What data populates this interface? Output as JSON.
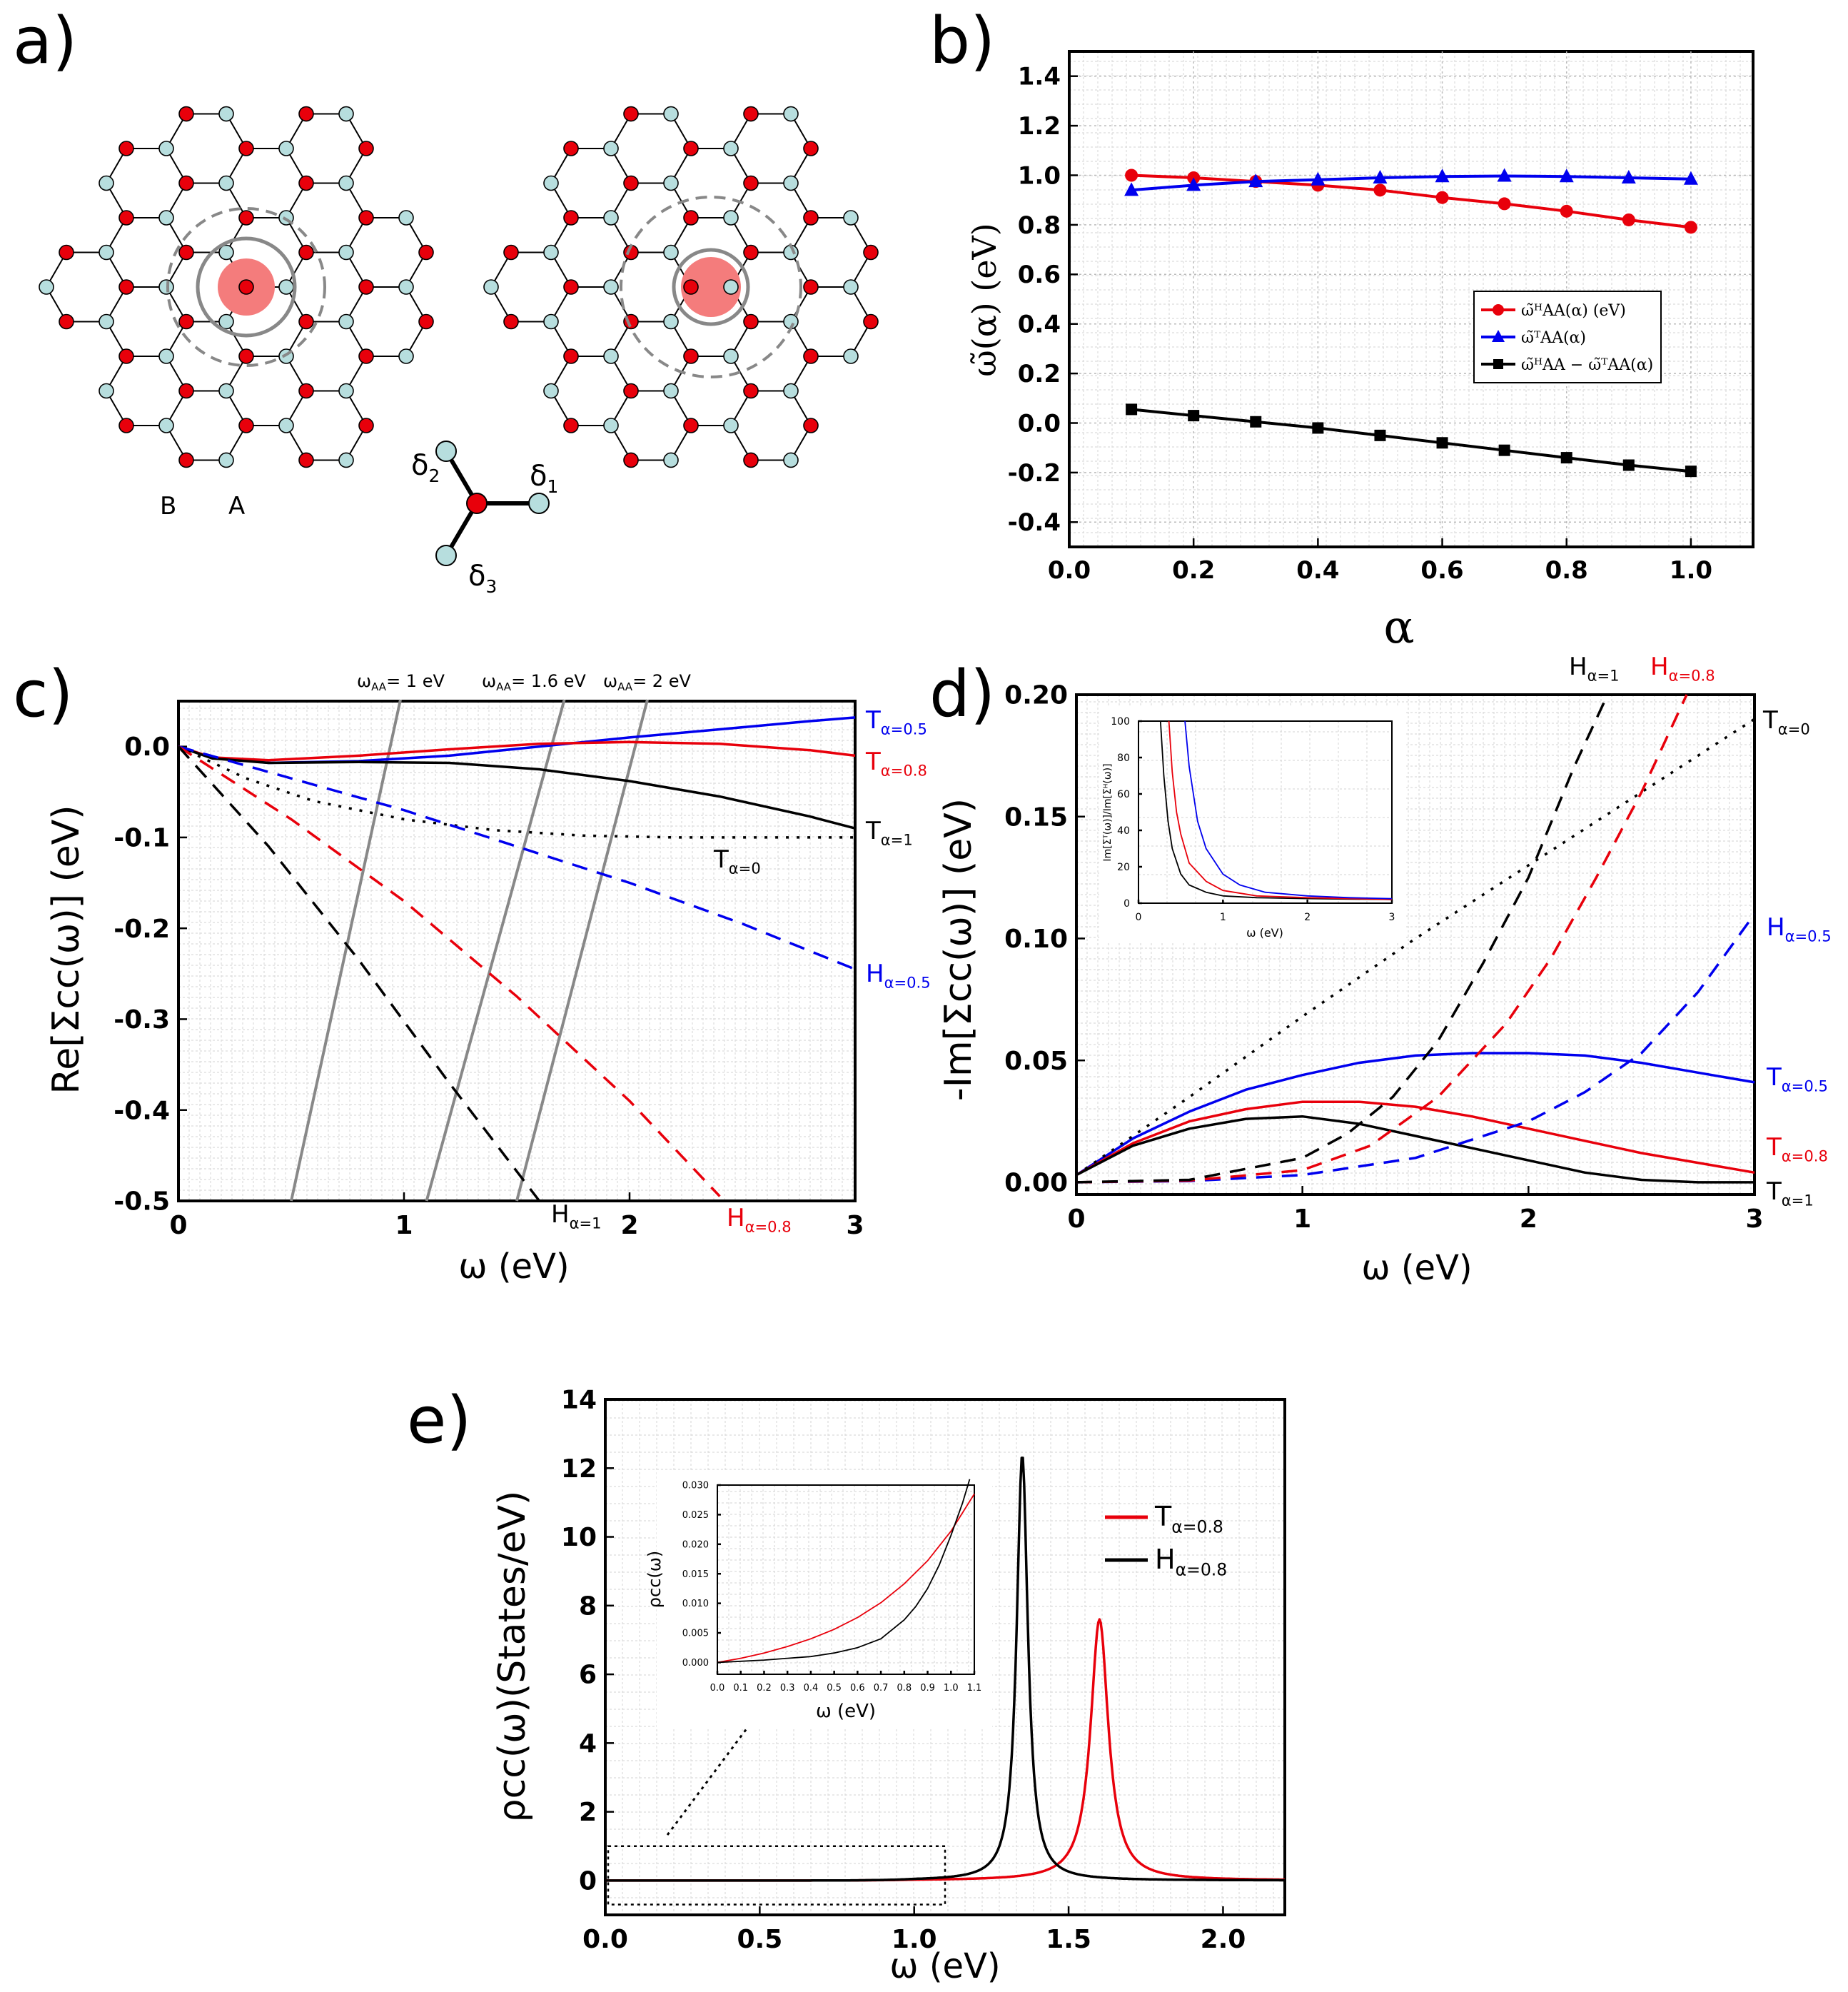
{
  "panels": {
    "a": {
      "label": "a)",
      "sublattice_b": "B",
      "sublattice_a": "A",
      "vectors": [
        "δ1",
        "δ2",
        "δ3"
      ],
      "colors": {
        "red_site": "#e8000b",
        "blue_site": "#b7dede",
        "impurity": "#f47c7c",
        "ring": "#888888"
      }
    },
    "b": {
      "label": "b)"
    },
    "c": {
      "label": "c)"
    },
    "d": {
      "label": "d)"
    },
    "e": {
      "label": "e)"
    }
  },
  "chart_data": [
    {
      "id": "b",
      "type": "line",
      "title": "",
      "xlabel": "α",
      "ylabel": "ω̃(α) (eV)",
      "xlim": [
        0,
        1.1
      ],
      "ylim": [
        -0.5,
        1.5
      ],
      "xticks": [
        "0.0",
        "0.2",
        "0.4",
        "0.6",
        "0.8",
        "1.0"
      ],
      "yticks": [
        "-0.4",
        "-0.2",
        "0.0",
        "0.2",
        "0.4",
        "0.6",
        "0.8",
        "1.0",
        "1.2",
        "1.4"
      ],
      "x": [
        0.1,
        0.2,
        0.3,
        0.4,
        0.5,
        0.6,
        0.7,
        0.8,
        0.9,
        1.0
      ],
      "series": [
        {
          "name": "ω̃ᴴAA(α) (eV)",
          "color": "#e8000b",
          "marker": "circle",
          "values": [
            1.0,
            0.99,
            0.975,
            0.96,
            0.94,
            0.91,
            0.885,
            0.855,
            0.82,
            0.79
          ]
        },
        {
          "name": "ω̃ᵀAA(α)",
          "color": "#0000ee",
          "marker": "triangle",
          "values": [
            0.94,
            0.96,
            0.975,
            0.982,
            0.99,
            0.995,
            0.997,
            0.995,
            0.99,
            0.985
          ]
        },
        {
          "name": "ω̃ᴴAA − ω̃ᵀAA(α)",
          "color": "#000000",
          "marker": "square",
          "values": [
            0.055,
            0.03,
            0.005,
            -0.02,
            -0.05,
            -0.08,
            -0.11,
            -0.14,
            -0.17,
            -0.195
          ]
        }
      ],
      "legend": "right-middle"
    },
    {
      "id": "c",
      "type": "line",
      "xlabel": "ω (eV)",
      "ylabel": "Re[Σcc(ω)] (eV)",
      "xlim": [
        0,
        3
      ],
      "ylim": [
        -0.5,
        0.05
      ],
      "xticks": [
        "0",
        "1",
        "2",
        "3"
      ],
      "yticks": [
        "0.0",
        "-0.1",
        "-0.2",
        "-0.3",
        "-0.4",
        "-0.5"
      ],
      "top_labels": [
        "ωAA= 1 eV",
        "ωAA= 1.6 eV",
        "ωAA= 2 eV"
      ],
      "series": [
        {
          "name": "Tα=0.5",
          "color": "#0000ee",
          "dash": "solid",
          "x": [
            0,
            0.15,
            0.4,
            0.8,
            1.2,
            1.6,
            2.0,
            2.4,
            2.8,
            3.0
          ],
          "y": [
            0,
            -0.012,
            -0.018,
            -0.016,
            -0.01,
            0.0,
            0.01,
            0.019,
            0.028,
            0.032
          ]
        },
        {
          "name": "Tα=0.8",
          "color": "#e8000b",
          "dash": "solid",
          "x": [
            0,
            0.15,
            0.4,
            0.8,
            1.2,
            1.6,
            2.0,
            2.4,
            2.8,
            3.0
          ],
          "y": [
            0,
            -0.012,
            -0.015,
            -0.01,
            -0.003,
            0.003,
            0.005,
            0.003,
            -0.004,
            -0.01
          ]
        },
        {
          "name": "Tα=1",
          "color": "#000000",
          "dash": "solid",
          "x": [
            0,
            0.15,
            0.4,
            0.8,
            1.2,
            1.6,
            2.0,
            2.4,
            2.8,
            3.0
          ],
          "y": [
            0,
            -0.013,
            -0.018,
            -0.017,
            -0.018,
            -0.025,
            -0.038,
            -0.055,
            -0.077,
            -0.09
          ]
        },
        {
          "name": "Tα=0",
          "color": "#000000",
          "dash": "dotted",
          "x": [
            0,
            0.3,
            0.6,
            1.0,
            1.4,
            1.8,
            2.2,
            2.6,
            3.0
          ],
          "y": [
            0,
            -0.035,
            -0.06,
            -0.08,
            -0.092,
            -0.098,
            -0.1,
            -0.1,
            -0.1
          ]
        },
        {
          "name": "Hα=0.5",
          "color": "#0000ee",
          "dash": "dashed",
          "x": [
            0,
            0.5,
            1.0,
            1.5,
            2.0,
            2.5,
            3.0
          ],
          "y": [
            0,
            -0.035,
            -0.07,
            -0.11,
            -0.15,
            -0.195,
            -0.245
          ]
        },
        {
          "name": "Hα=0.8",
          "color": "#e8000b",
          "dash": "dashed",
          "x": [
            0,
            0.5,
            1.0,
            1.5,
            2.0,
            2.4
          ],
          "y": [
            0,
            -0.08,
            -0.17,
            -0.275,
            -0.39,
            -0.495
          ]
        },
        {
          "name": "Hα=1",
          "color": "#000000",
          "dash": "dashed",
          "x": [
            0,
            0.4,
            0.8,
            1.2,
            1.6
          ],
          "y": [
            0,
            -0.11,
            -0.235,
            -0.37,
            -0.5
          ]
        }
      ],
      "vertical_lines": [
        {
          "x_bottom": 0.5,
          "x_top": 1.0
        },
        {
          "x_bottom": 1.1,
          "x_top": 1.6
        },
        {
          "x_bottom": 1.5,
          "x_top": 2.0
        }
      ]
    },
    {
      "id": "d",
      "type": "line",
      "xlabel": "ω (eV)",
      "ylabel": "-Im[Σcc(ω)] (eV)",
      "xlim": [
        0,
        3
      ],
      "ylim": [
        -0.005,
        0.2
      ],
      "xticks": [
        "0",
        "1",
        "2",
        "3"
      ],
      "yticks": [
        "0.00",
        "0.05",
        "0.10",
        "0.15",
        "0.20"
      ],
      "series": [
        {
          "name": "Tα=0.5",
          "color": "#0000ee",
          "dash": "solid",
          "x": [
            0,
            0.25,
            0.5,
            0.75,
            1.0,
            1.25,
            1.5,
            1.75,
            2.0,
            2.25,
            2.5,
            2.75,
            3.0
          ],
          "y": [
            0.003,
            0.018,
            0.029,
            0.038,
            0.044,
            0.049,
            0.052,
            0.053,
            0.053,
            0.052,
            0.049,
            0.045,
            0.041
          ]
        },
        {
          "name": "Tα=0.8",
          "color": "#e8000b",
          "dash": "solid",
          "x": [
            0,
            0.25,
            0.5,
            0.75,
            1.0,
            1.25,
            1.5,
            1.75,
            2.0,
            2.25,
            2.5,
            2.75,
            3.0
          ],
          "y": [
            0.003,
            0.016,
            0.025,
            0.03,
            0.033,
            0.033,
            0.031,
            0.027,
            0.022,
            0.017,
            0.012,
            0.008,
            0.004
          ]
        },
        {
          "name": "Tα=1",
          "color": "#000000",
          "dash": "solid",
          "x": [
            0,
            0.25,
            0.5,
            0.75,
            1.0,
            1.25,
            1.5,
            1.75,
            2.0,
            2.25,
            2.5,
            2.75,
            3.0
          ],
          "y": [
            0.003,
            0.015,
            0.022,
            0.026,
            0.027,
            0.024,
            0.019,
            0.014,
            0.009,
            0.004,
            0.001,
            0.0,
            0.0
          ]
        },
        {
          "name": "Tα=0",
          "color": "#000000",
          "dash": "dotted",
          "x": [
            0,
            0.5,
            1.0,
            1.5,
            2.0,
            2.5,
            3.0
          ],
          "y": [
            0.003,
            0.035,
            0.068,
            0.1,
            0.13,
            0.16,
            0.19
          ]
        },
        {
          "name": "Hα=0.5",
          "color": "#0000ee",
          "dash": "dashed",
          "x": [
            0,
            0.5,
            1.0,
            1.5,
            2.0,
            2.25,
            2.5,
            2.75,
            3.0
          ],
          "y": [
            0,
            0.0005,
            0.003,
            0.01,
            0.025,
            0.037,
            0.053,
            0.078,
            0.11
          ]
        },
        {
          "name": "Hα=0.8",
          "color": "#e8000b",
          "dash": "dashed",
          "x": [
            0,
            0.5,
            1.0,
            1.3,
            1.6,
            1.9,
            2.1,
            2.3,
            2.5,
            2.7
          ],
          "y": [
            0,
            0.0007,
            0.005,
            0.015,
            0.035,
            0.065,
            0.092,
            0.125,
            0.16,
            0.2
          ]
        },
        {
          "name": "Hα=1",
          "color": "#000000",
          "dash": "dashed",
          "x": [
            0,
            0.5,
            1.0,
            1.2,
            1.4,
            1.6,
            1.8,
            2.0,
            2.2,
            2.35
          ],
          "y": [
            0,
            0.001,
            0.01,
            0.02,
            0.035,
            0.058,
            0.09,
            0.125,
            0.17,
            0.2
          ]
        }
      ],
      "inset": {
        "xlabel": "ω (eV)",
        "ylabel": "Im[Σᵀ(ω)]/Im[Σᴴ(ω)]",
        "xlim": [
          0,
          3
        ],
        "ylim": [
          0,
          100
        ],
        "xticks": [
          "0",
          "1",
          "2",
          "3"
        ],
        "yticks": [
          "0",
          "20",
          "40",
          "60",
          "80",
          "100"
        ],
        "series": [
          {
            "color": "#000000",
            "x": [
              0.26,
              0.3,
              0.35,
              0.4,
              0.5,
              0.6,
              0.8,
              1.0,
              1.4,
              2.0,
              3.0
            ],
            "y": [
              100,
              70,
              45,
              30,
              16,
              10,
              6,
              4,
              3,
              2.5,
              2
            ]
          },
          {
            "color": "#e8000b",
            "x": [
              0.36,
              0.4,
              0.45,
              0.5,
              0.6,
              0.8,
              1.0,
              1.4,
              2.0,
              3.0
            ],
            "y": [
              100,
              72,
              50,
              38,
              22,
              12,
              7,
              4,
              3,
              2
            ]
          },
          {
            "color": "#0000ee",
            "x": [
              0.55,
              0.6,
              0.7,
              0.8,
              1.0,
              1.2,
              1.5,
              2.0,
              2.5,
              3.0
            ],
            "y": [
              100,
              75,
              45,
              30,
              16,
              10,
              6,
              4,
              3,
              2.5
            ]
          }
        ]
      }
    },
    {
      "id": "e",
      "type": "line",
      "xlabel": "ω (eV)",
      "ylabel": "ρcc(ω)(States/eV)",
      "xlim": [
        0,
        2.2
      ],
      "ylim": [
        -1,
        14
      ],
      "xticks": [
        "0.0",
        "0.5",
        "1.0",
        "1.5",
        "2.0"
      ],
      "yticks": [
        "0",
        "2",
        "4",
        "6",
        "8",
        "10",
        "12",
        "14"
      ],
      "series": [
        {
          "name": "Tα=0.8",
          "color": "#e8000b",
          "peak": 1.6,
          "height": 7.6,
          "gamma": 0.035
        },
        {
          "name": "Hα=0.8",
          "color": "#000000",
          "peak": 1.35,
          "height": 12.4,
          "gamma": 0.022
        }
      ],
      "inset": {
        "xlabel": "ω (eV)",
        "ylabel": "ρcc(ω)",
        "xlim": [
          0,
          1.1
        ],
        "ylim": [
          -0.002,
          0.03
        ],
        "xticks": [
          "0.0",
          "0.1",
          "0.2",
          "0.3",
          "0.4",
          "0.5",
          "0.6",
          "0.7",
          "0.8",
          "0.9",
          "1.0",
          "1.1"
        ],
        "yticks": [
          "0.000",
          "0.005",
          "0.010",
          "0.015",
          "0.020",
          "0.025",
          "0.030"
        ],
        "series": [
          {
            "color": "#e8000b",
            "x": [
              0,
              0.1,
              0.2,
              0.3,
              0.4,
              0.5,
              0.6,
              0.7,
              0.8,
              0.9,
              1.0,
              1.1
            ],
            "y": [
              0.0,
              0.0007,
              0.0016,
              0.0027,
              0.004,
              0.0056,
              0.0076,
              0.0101,
              0.0133,
              0.0172,
              0.0222,
              0.0285
            ]
          },
          {
            "color": "#000000",
            "x": [
              0,
              0.1,
              0.2,
              0.3,
              0.4,
              0.5,
              0.6,
              0.7,
              0.8,
              0.85,
              0.9,
              0.95,
              1.0,
              1.05,
              1.08
            ],
            "y": [
              0.0,
              0.0002,
              0.0004,
              0.0007,
              0.001,
              0.0016,
              0.0025,
              0.004,
              0.0072,
              0.0095,
              0.0125,
              0.0165,
              0.0215,
              0.027,
              0.031
            ]
          }
        ]
      }
    }
  ]
}
